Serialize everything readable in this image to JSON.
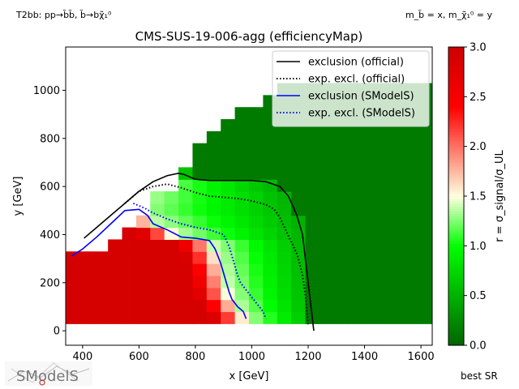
{
  "header": {
    "process_left": "T2bb: pp→b̃b̃, b̃→bχ̃₁⁰",
    "mass_right": "m_b̃ = x, m_χ̃₁⁰ = y",
    "footer_right": "best SR",
    "logo_text": "SModelS"
  },
  "chart_data": {
    "type": "heatmap",
    "title": "CMS-SUS-19-006-agg (efficiencyMap)",
    "xlabel": "x [GeV]",
    "ylabel": "y [GeV]",
    "colorbar_label": "r = σ_signal/σ_UL",
    "xlim": [
      340,
      1640
    ],
    "ylim": [
      -60,
      1180
    ],
    "x_ticks": [
      400,
      600,
      800,
      1000,
      1200,
      1400,
      1600
    ],
    "y_ticks": [
      0,
      200,
      400,
      600,
      800,
      1000
    ],
    "colorbar_range": [
      0.0,
      3.0
    ],
    "colorbar_ticks": [
      0.0,
      0.5,
      1.0,
      1.5,
      2.0,
      2.5,
      3.0
    ],
    "colormap": [
      "#006400",
      "#00ff00",
      "#ffffe0",
      "#ff0000",
      "#cd0000"
    ],
    "grid": false,
    "legend_position": "top-right",
    "heatmap": {
      "cell_x": 50,
      "cell_y": 50,
      "x_start": 340,
      "y_start": 30,
      "x_end": 1640,
      "boundary_x": [
        340,
        400,
        460,
        520,
        580,
        640,
        700,
        760,
        820,
        880,
        940,
        1000,
        1060,
        1640
      ],
      "boundary_ymax": [
        330,
        330,
        380,
        430,
        480,
        580,
        680,
        780,
        830,
        880,
        930,
        980,
        1030,
        1180
      ]
    },
    "series": [
      {
        "name": "exclusion (official)",
        "color": "#000000",
        "style": "solid",
        "x": [
          405,
          450,
          500,
          550,
          600,
          650,
          700,
          740,
          760,
          800,
          850,
          900,
          950,
          1000,
          1050,
          1100,
          1130,
          1160,
          1180,
          1190,
          1200,
          1205,
          1210,
          1215,
          1220
        ],
        "y": [
          385,
          430,
          480,
          530,
          580,
          620,
          645,
          655,
          650,
          630,
          625,
          625,
          625,
          625,
          620,
          600,
          560,
          480,
          400,
          300,
          200,
          150,
          100,
          50,
          0
        ]
      },
      {
        "name": "exp. excl. (official)",
        "color": "#000000",
        "style": "dotted",
        "x": [
          550,
          600,
          650,
          700,
          750,
          800,
          850,
          900,
          950,
          1000,
          1050,
          1080,
          1100,
          1120,
          1140,
          1160,
          1170,
          1180,
          1190,
          1195,
          1200
        ],
        "y": [
          530,
          580,
          600,
          610,
          595,
          575,
          560,
          555,
          550,
          540,
          525,
          505,
          470,
          420,
          370,
          320,
          280,
          230,
          150,
          80,
          20
        ]
      },
      {
        "name": "exclusion (SModelS)",
        "color": "#0000ff",
        "style": "solid",
        "x": [
          360,
          400,
          450,
          500,
          550,
          600,
          630,
          650,
          700,
          750,
          800,
          850,
          870,
          890,
          900,
          910,
          920,
          930,
          950,
          970,
          980
        ],
        "y": [
          310,
          340,
          390,
          445,
          500,
          505,
          480,
          445,
          420,
          390,
          385,
          375,
          340,
          280,
          240,
          200,
          160,
          130,
          100,
          80,
          50
        ]
      },
      {
        "name": "exp. excl. (SModelS)",
        "color": "#0000ff",
        "style": "dotted",
        "x": [
          580,
          620,
          650,
          700,
          750,
          800,
          850,
          900,
          920,
          940,
          950,
          960,
          980,
          1000,
          1020,
          1040,
          1050
        ],
        "y": [
          530,
          510,
          490,
          465,
          445,
          430,
          420,
          400,
          350,
          270,
          230,
          200,
          170,
          140,
          110,
          80,
          50
        ]
      }
    ]
  }
}
